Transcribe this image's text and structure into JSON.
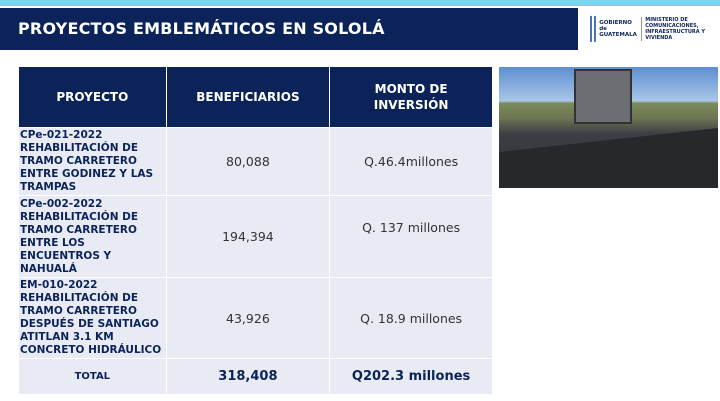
{
  "header": {
    "title": "PROYECTOS EMBLEMÁTICOS EN SOLOLÁ"
  },
  "logo": {
    "gobierno": "GOBIERNO de GUATEMALA",
    "ministerio": "MINISTERIO DE COMUNICACIONES, INFRAESTRUCTURA Y VIVIENDA"
  },
  "table": {
    "headers": [
      "PROYECTO",
      "BENEFICIARIOS",
      "MONTO DE INVERSIÓN"
    ],
    "rows": [
      {
        "proyecto": "CPe-021-2022 REHABILITACIÓN DE TRAMO CARRETERO ENTRE GODINEZ Y LAS TRAMPAS",
        "beneficiarios": "80,088",
        "monto": "Q.46.4millones"
      },
      {
        "proyecto": "CPe-002-2022 REHABILITACIÓN DE TRAMO CARRETERO ENTRE LOS ENCUENTROS Y NAHUALÁ",
        "beneficiarios": "194,394",
        "monto": "Q. 137 millones"
      },
      {
        "proyecto": "EM-010-2022 REHABILITACIÓN DE TRAMO CARRETERO DESPUÉS DE SANTIAGO ATITLAN 3.1 KM CONCRETO HIDRÁULICO",
        "beneficiarios": "43,926",
        "monto": "Q. 18.9 millones"
      }
    ],
    "total": {
      "label": "TOTAL",
      "beneficiarios": "318,408",
      "monto": "Q202.3 millones"
    }
  }
}
